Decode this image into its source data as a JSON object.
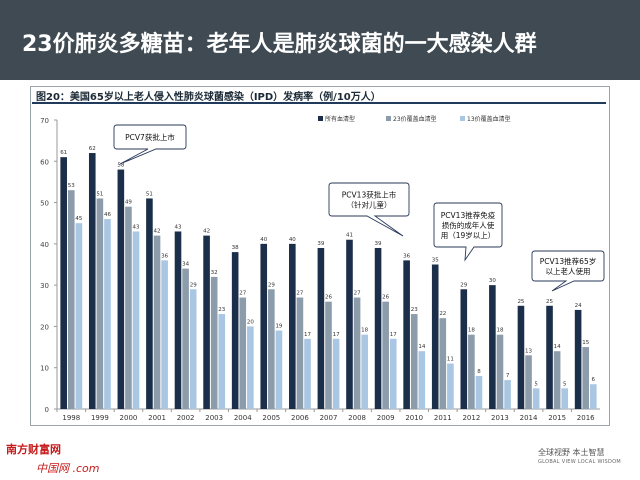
{
  "slide": {
    "title": "23价肺炎多糖苗：老年人是肺炎球菌的一大感染人群",
    "figure_caption": "图20：美国65岁以上老人侵入性肺炎球菌感染（IPD）发病率（例/10万人）"
  },
  "footer": {
    "brand_line1": "南方财富网",
    "brand_line2": "中国网 .com",
    "right_cn": "全球视野  本土智慧",
    "right_en": "GLOBAL VIEW   LOCAL WISDOM"
  },
  "colors": {
    "header_bg": "#3f4a52",
    "series_all": "#1c2f4a",
    "series_23": "#8d9caa",
    "series_13": "#a9c6e3"
  },
  "chart_data": {
    "type": "bar",
    "categories": [
      "1998",
      "1999",
      "2000",
      "2001",
      "2002",
      "2003",
      "2004",
      "2005",
      "2006",
      "2007",
      "2008",
      "2009",
      "2010",
      "2011",
      "2012",
      "2013",
      "2014",
      "2015",
      "2016"
    ],
    "series": [
      {
        "name": "所有血清型",
        "values": [
          61,
          62,
          58,
          51,
          43,
          42,
          38,
          40,
          40,
          39,
          41,
          39,
          36,
          35,
          29,
          30,
          25,
          25,
          24
        ]
      },
      {
        "name": "23价覆盖血清型",
        "values": [
          53,
          51,
          49,
          42,
          34,
          32,
          27,
          29,
          27,
          26,
          27,
          26,
          23,
          22,
          18,
          18,
          13,
          14,
          15
        ]
      },
      {
        "name": "13价覆盖血清型",
        "values": [
          45,
          46,
          43,
          36,
          29,
          23,
          20,
          19,
          17,
          17,
          18,
          17,
          14,
          11,
          8,
          7,
          5,
          5,
          6
        ]
      }
    ],
    "ylim": [
      0,
      70
    ],
    "yticks": [
      0,
      10,
      20,
      30,
      40,
      50,
      60,
      70
    ],
    "grid": false,
    "legend_position": "top-right",
    "annotations": [
      {
        "text": "PCV7获批上市",
        "category": "2000"
      },
      {
        "text": "PCV13获批上市（针对儿童）",
        "category": "2010"
      },
      {
        "text": "PCV13推荐免疫损伤的成年人使用（19岁以上）",
        "category": "2012"
      },
      {
        "text": "PCV13推荐65岁以上老人使用",
        "category": "2015"
      }
    ]
  }
}
